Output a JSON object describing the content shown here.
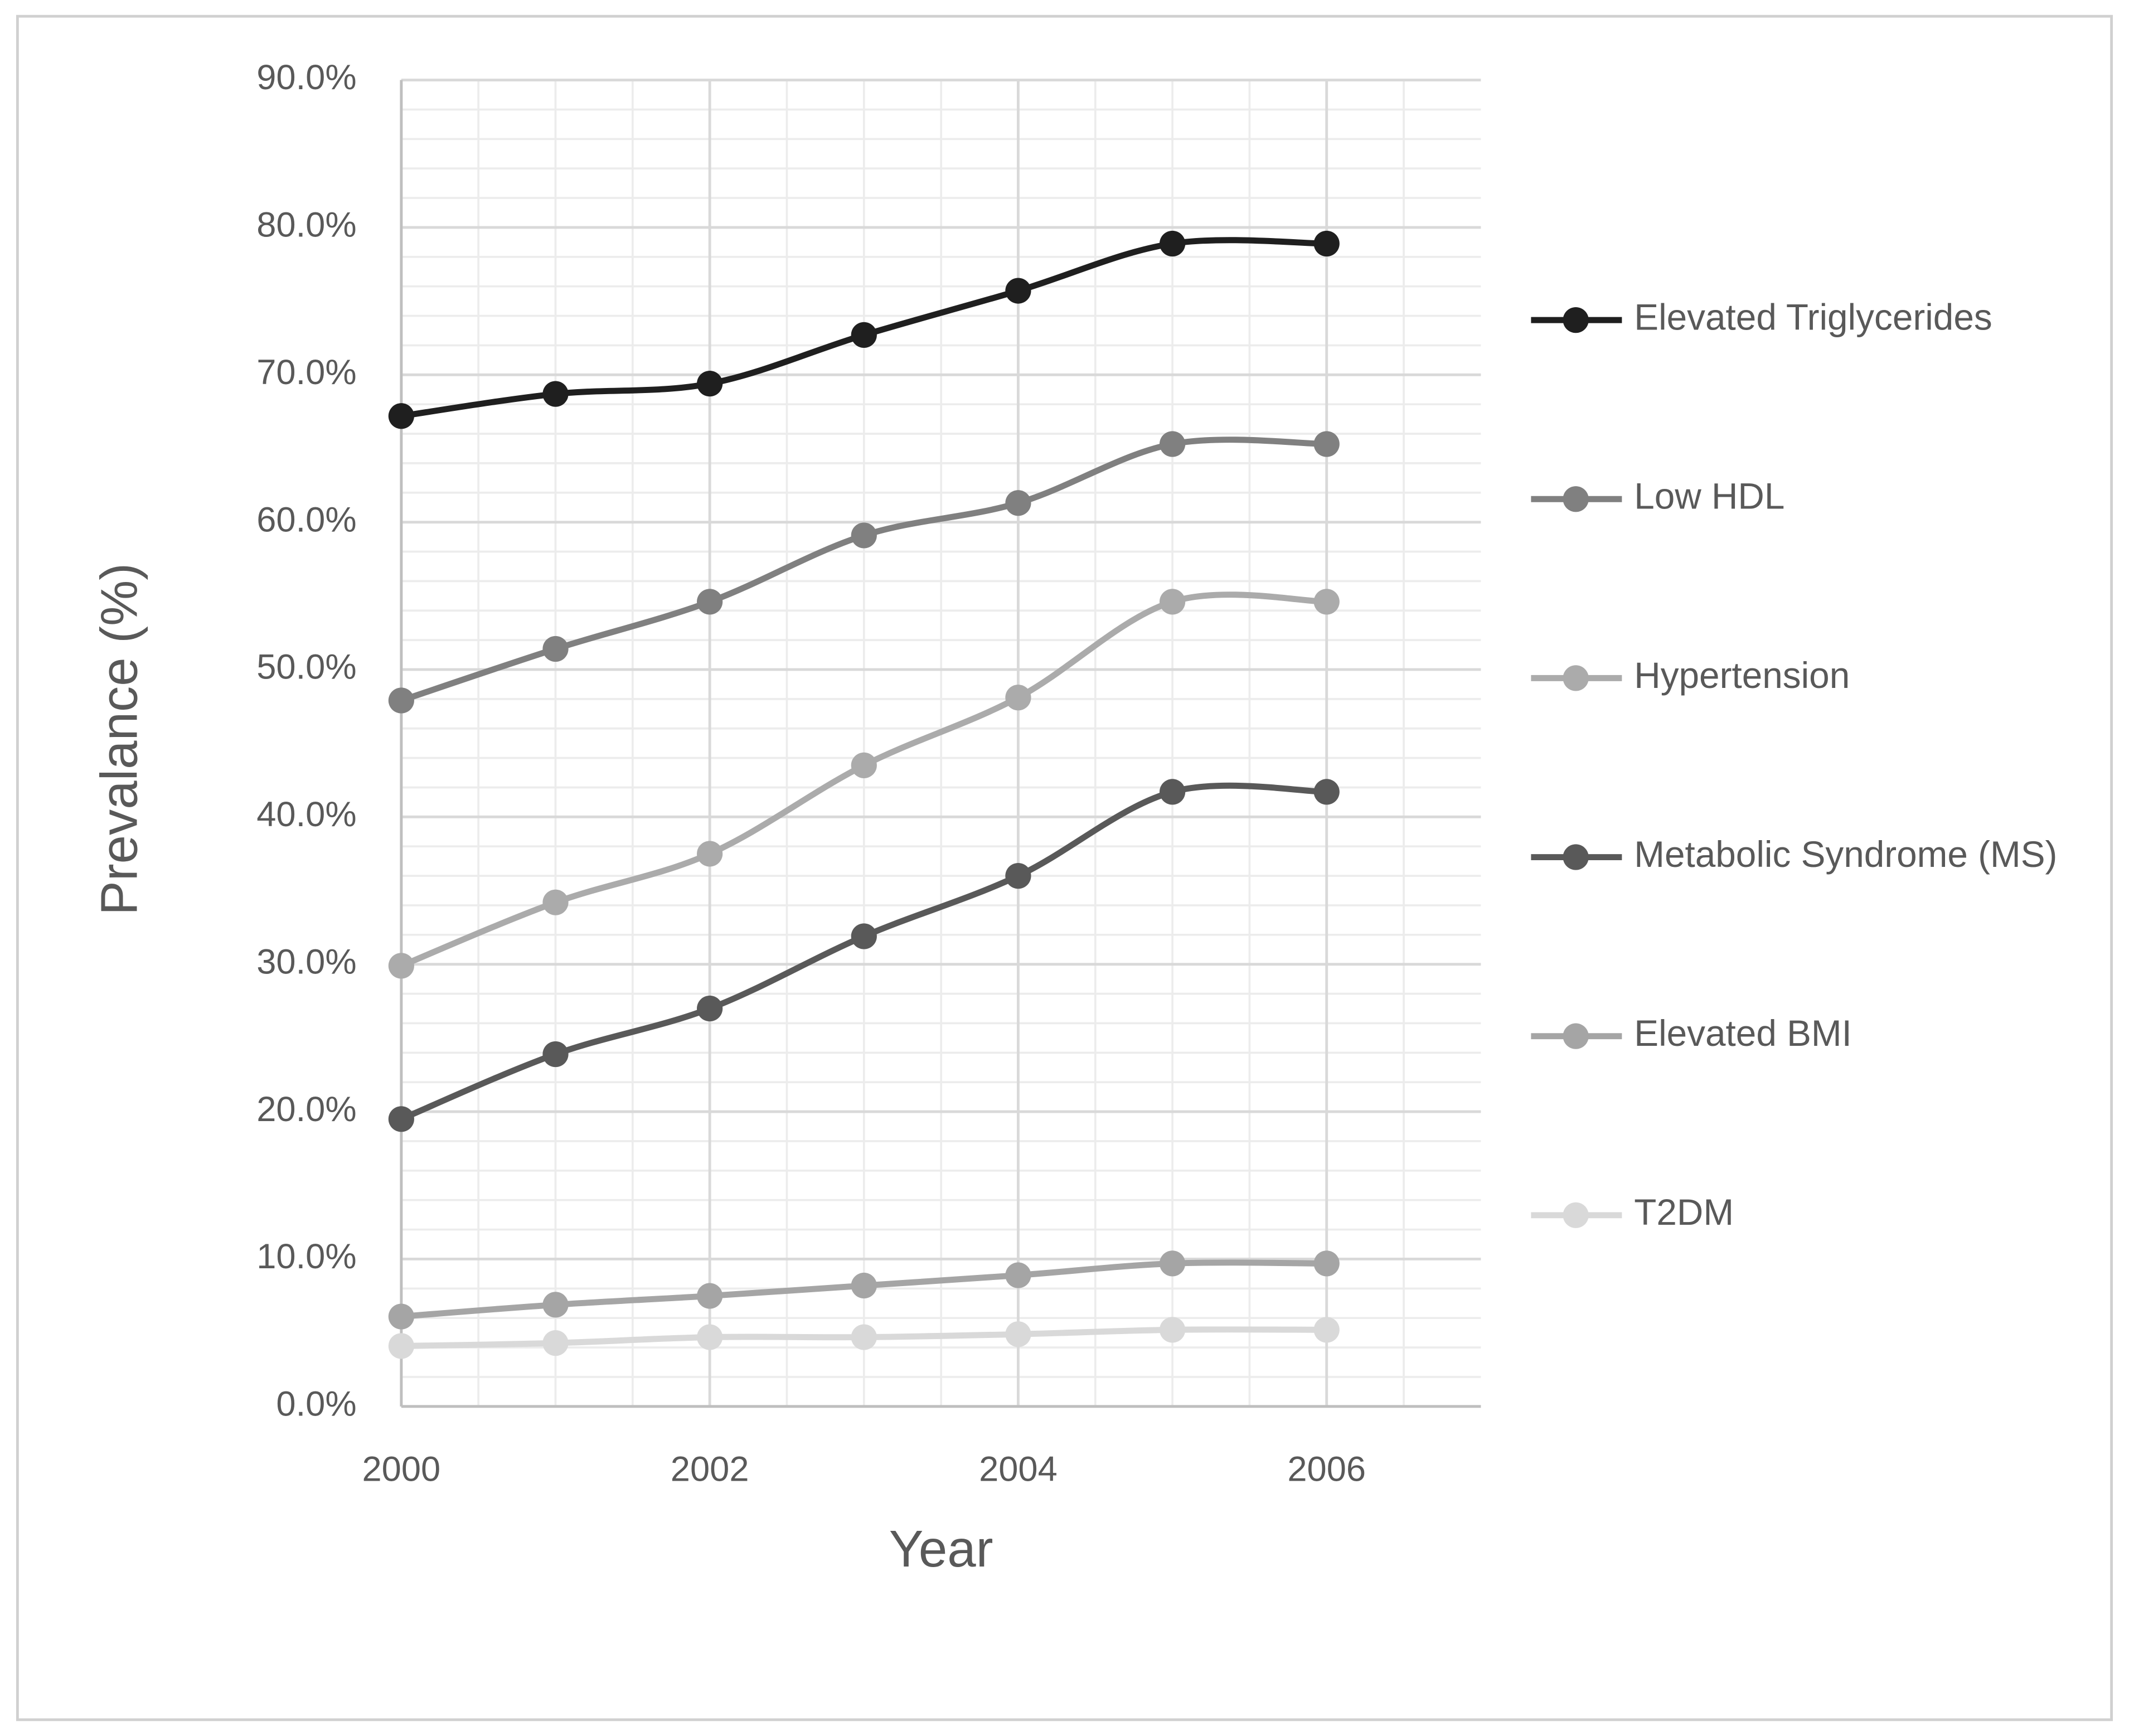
{
  "chart_data": {
    "type": "line",
    "x_label": "Year",
    "y_label": "Prevalance (%)",
    "x": [
      2000,
      2001,
      2002,
      2003,
      2004,
      2005,
      2006
    ],
    "xlim": [
      2000,
      2007
    ],
    "xticks": [
      2000,
      2002,
      2004,
      2006
    ],
    "ylim": [
      0,
      90
    ],
    "yticks": [
      {
        "value": 0,
        "label": "0.0%"
      },
      {
        "value": 10,
        "label": "10.0%"
      },
      {
        "value": 20,
        "label": "20.0%"
      },
      {
        "value": 30,
        "label": "30.0%"
      },
      {
        "value": 40,
        "label": "40.0%"
      },
      {
        "value": 50,
        "label": "50.0%"
      },
      {
        "value": 60,
        "label": "60.0%"
      },
      {
        "value": 70,
        "label": "70.0%"
      },
      {
        "value": 80,
        "label": "80.0%"
      },
      {
        "value": 90,
        "label": "90.0%"
      }
    ],
    "grid": true,
    "smooth": true,
    "legend": "right",
    "series": [
      {
        "name": "Elevated Triglycerides",
        "color": "#1f1f1f",
        "values": [
          67.2,
          68.7,
          69.4,
          72.7,
          75.7,
          78.9,
          78.9
        ]
      },
      {
        "name": "Low HDL",
        "color": "#808080",
        "values": [
          47.9,
          51.4,
          54.6,
          59.1,
          61.3,
          65.3,
          65.3
        ]
      },
      {
        "name": "Hypertension",
        "color": "#ababab",
        "values": [
          29.9,
          34.2,
          37.5,
          43.5,
          48.1,
          54.6,
          54.6
        ]
      },
      {
        "name": "Metabolic Syndrome (MS)",
        "color": "#595959",
        "values": [
          19.5,
          23.9,
          27.0,
          31.9,
          36.0,
          41.7,
          41.7
        ]
      },
      {
        "name": "Elevated BMI",
        "color": "#a5a5a5",
        "values": [
          6.1,
          6.9,
          7.5,
          8.2,
          8.9,
          9.7,
          9.7
        ]
      },
      {
        "name": "T2DM",
        "color": "#d9d9d9",
        "values": [
          4.1,
          4.3,
          4.7,
          4.7,
          4.9,
          5.2,
          5.2
        ]
      }
    ]
  }
}
